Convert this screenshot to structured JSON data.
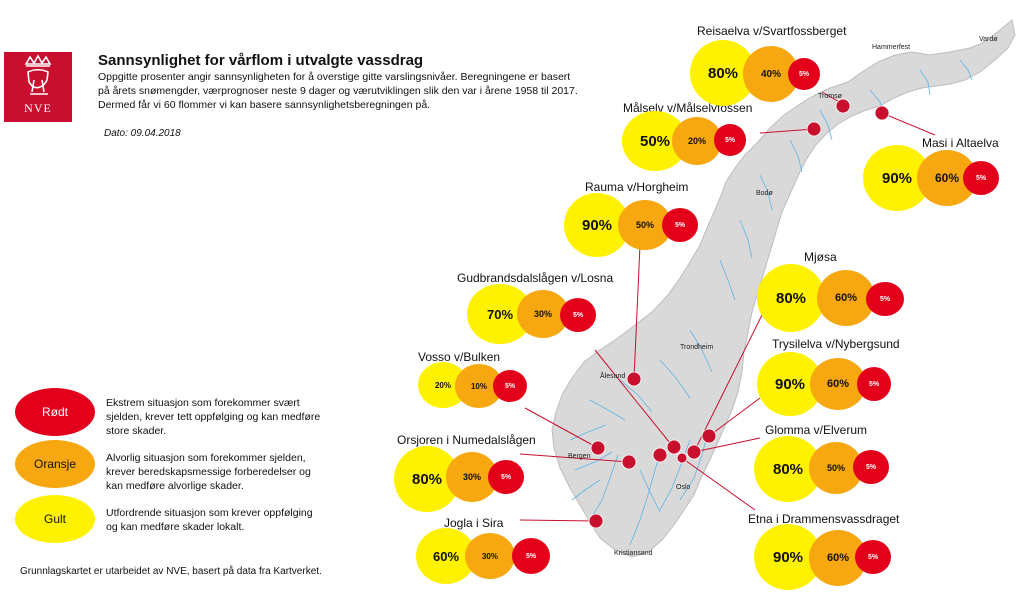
{
  "header": {
    "logo_text": "NVE",
    "title": "Sannsynlighet for vårflom i utvalgte vassdrag",
    "subtitle": "Oppgitte prosenter angir sannsynligheten for å overstige gitte varslingsnivåer. Beregningene er basert på årets snømengder, værprognoser neste 9 dager og værutviklingen slik den var i årene 1958 til 2017.  Dermed får vi 60 flommer vi kan basere sannsynlighetsberegningen på.",
    "date": "Dato: 09.04.2018"
  },
  "legend": [
    {
      "label": "Rødt",
      "color": "#e3001b",
      "text": "Ekstrem situasjon som forekommer svært sjelden, krever tett oppfølging og kan medføre store skader."
    },
    {
      "label": "Oransje",
      "color": "#f7a70f",
      "text": "Alvorlig situasjon som forekommer sjelden, krever beredskapsmessige forberedelser og kan medføre alvorlige skader."
    },
    {
      "label": "Gult",
      "color": "#fff200",
      "text": "Utfordrende situasjon som krever oppfølging og kan medføre skader lokalt."
    }
  ],
  "credit": "Grunnlagskartet er utarbeidet av NVE, basert på data fra Kartverket.",
  "cities": [
    "Vardø",
    "Hammerfest",
    "Tromsø",
    "Bodø",
    "Trondheim",
    "Ålesund",
    "Bergen",
    "Oslo",
    "Kristiansand"
  ],
  "colors": {
    "red": "#e3001b",
    "orange": "#f7a70f",
    "yellow": "#fff200",
    "land": "#d9d9d9",
    "river": "#5fb4e6",
    "marker": "#c8102e"
  },
  "regions": [
    {
      "name": "Reisaelva v/Svartfossberget",
      "yellow": "80%",
      "orange": "40%",
      "red": "5%"
    },
    {
      "name": "Målselv v/Målselvfossen",
      "yellow": "50%",
      "orange": "20%",
      "red": "5%"
    },
    {
      "name": "Masi i Altaelva",
      "yellow": "90%",
      "orange": "60%",
      "red": "5%"
    },
    {
      "name": "Rauma v/Horgheim",
      "yellow": "90%",
      "orange": "50%",
      "red": "5%"
    },
    {
      "name": "Gudbrandsdalslågen v/Losna",
      "yellow": "70%",
      "orange": "30%",
      "red": "5%"
    },
    {
      "name": "Mjøsa",
      "yellow": "80%",
      "orange": "60%",
      "red": "5%"
    },
    {
      "name": "Vosso v/Bulken",
      "yellow": "20%",
      "orange": "10%",
      "red": "5%"
    },
    {
      "name": "Trysilelva v/Nybergsund",
      "yellow": "90%",
      "orange": "60%",
      "red": "5%"
    },
    {
      "name": "Orsjoren i Numedalslågen",
      "yellow": "80%",
      "orange": "30%",
      "red": "5%"
    },
    {
      "name": "Glomma v/Elverum",
      "yellow": "80%",
      "orange": "50%",
      "red": "5%"
    },
    {
      "name": "Jogla i Sira",
      "yellow": "60%",
      "orange": "30%",
      "red": "5%"
    },
    {
      "name": "Etna i Drammensvassdraget",
      "yellow": "90%",
      "orange": "60%",
      "red": "5%"
    }
  ]
}
